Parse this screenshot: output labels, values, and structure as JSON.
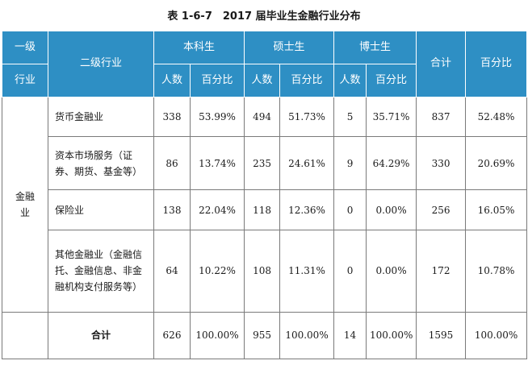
{
  "title": "表 1-6-7　2017 届毕业生金融行业分布",
  "header": {
    "level1_top": "一级",
    "level1_bottom": "行业",
    "level2": "二级行业",
    "bachelor": "本科生",
    "master": "硕士生",
    "doctor": "博士生",
    "total": "合计",
    "percent": "百分比",
    "count": "人数",
    "pct": "百分比"
  },
  "category": "金融业",
  "rows": [
    {
      "name": "货币金融业",
      "b_n": "338",
      "b_p": "53.99%",
      "m_n": "494",
      "m_p": "51.73%",
      "d_n": "5",
      "d_p": "35.71%",
      "t": "837",
      "t_p": "52.48%"
    },
    {
      "name": "资本市场服务（证券、期货、基金等）",
      "b_n": "86",
      "b_p": "13.74%",
      "m_n": "235",
      "m_p": "24.61%",
      "d_n": "9",
      "d_p": "64.29%",
      "t": "330",
      "t_p": "20.69%"
    },
    {
      "name": "保险业",
      "b_n": "138",
      "b_p": "22.04%",
      "m_n": "118",
      "m_p": "12.36%",
      "d_n": "0",
      "d_p": "0.00%",
      "t": "256",
      "t_p": "16.05%"
    },
    {
      "name": "其他金融业（金融信托、金融信息、非金融机构支付服务等）",
      "b_n": "64",
      "b_p": "10.22%",
      "m_n": "108",
      "m_p": "11.31%",
      "d_n": "0",
      "d_p": "0.00%",
      "t": "172",
      "t_p": "10.78%"
    }
  ],
  "total_row": {
    "name": "合计",
    "b_n": "626",
    "b_p": "100.00%",
    "m_n": "955",
    "m_p": "100.00%",
    "d_n": "14",
    "d_p": "100.00%",
    "t": "1595",
    "t_p": "100.00%"
  }
}
